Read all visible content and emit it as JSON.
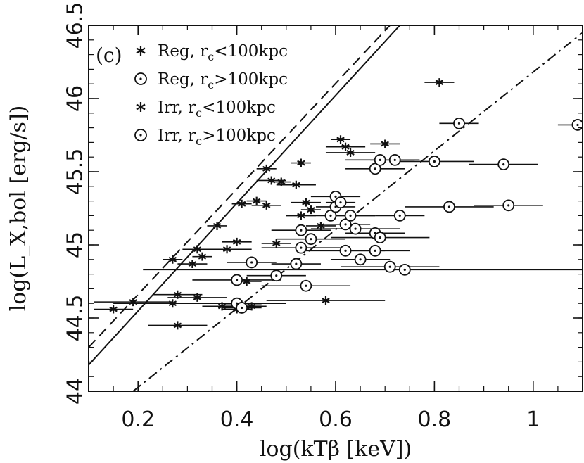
{
  "chart_data": {
    "type": "scatter",
    "panel_label": "(c)",
    "xlabel": "log(kTβ [keV])",
    "ylabel": "log(L_X,bol [erg/s])",
    "xlim": [
      0.1,
      1.1
    ],
    "ylim": [
      44.0,
      46.5
    ],
    "x_ticks": [
      0.2,
      0.4,
      0.6,
      0.8,
      1.0
    ],
    "x_tick_labels": [
      "0.2",
      "0.4",
      "0.6",
      "0.8",
      "1"
    ],
    "y_ticks": [
      44.0,
      44.5,
      45.0,
      45.5,
      46.0,
      46.5
    ],
    "y_tick_labels": [
      "44",
      "44.5",
      "45",
      "45.5",
      "46",
      "46.5"
    ],
    "legend": {
      "placement": "top-left",
      "entries": [
        {
          "marker": "star",
          "text": "Reg, r",
          "sub": "c",
          "rest": "<100kpc"
        },
        {
          "marker": "circle-dot",
          "text": "Reg, r",
          "sub": "c",
          "rest": ">100kpc"
        },
        {
          "marker": "star",
          "text": "Irr, r",
          "sub": "c",
          "rest": "<100kpc"
        },
        {
          "marker": "circle-dot",
          "text": "Irr, r",
          "sub": "c",
          "rest": ">100kpc"
        }
      ]
    },
    "lines": [
      {
        "style": "dashed",
        "points": [
          [
            0.1,
            44.3
          ],
          [
            0.71,
            46.5
          ]
        ]
      },
      {
        "style": "solid",
        "points": [
          [
            0.1,
            44.18
          ],
          [
            0.73,
            46.5
          ]
        ]
      },
      {
        "style": "dash-dot",
        "points": [
          [
            0.19,
            44.0
          ],
          [
            1.1,
            46.45
          ]
        ]
      }
    ],
    "series": [
      {
        "marker": "star",
        "points": [
          {
            "x": 0.15,
            "y": 44.56,
            "xerr": 0.04
          },
          {
            "x": 0.19,
            "y": 44.61,
            "xerr": 0.08
          },
          {
            "x": 0.27,
            "y": 44.6,
            "xerr": 0.12
          },
          {
            "x": 0.28,
            "y": 44.66,
            "xerr": 0.05
          },
          {
            "x": 0.27,
            "y": 44.9,
            "xerr": 0.02
          },
          {
            "x": 0.28,
            "y": 44.45,
            "xerr": 0.06
          },
          {
            "x": 0.32,
            "y": 44.97,
            "xerr": 0.03
          },
          {
            "x": 0.33,
            "y": 44.92,
            "xerr": 0.02
          },
          {
            "x": 0.31,
            "y": 44.87,
            "xerr": 0.03
          },
          {
            "x": 0.32,
            "y": 44.64,
            "xerr": 0.06
          },
          {
            "x": 0.36,
            "y": 45.13,
            "xerr": 0.02
          },
          {
            "x": 0.37,
            "y": 44.58,
            "xerr": 0.04
          },
          {
            "x": 0.38,
            "y": 44.97,
            "xerr": 0.05
          },
          {
            "x": 0.4,
            "y": 45.02,
            "xerr": 0.03
          },
          {
            "x": 0.41,
            "y": 45.28,
            "xerr": 0.02
          },
          {
            "x": 0.42,
            "y": 44.75,
            "xerr": 0.03
          },
          {
            "x": 0.44,
            "y": 45.3,
            "xerr": 0.02
          },
          {
            "x": 0.46,
            "y": 45.52,
            "xerr": 0.02
          },
          {
            "x": 0.46,
            "y": 45.27,
            "xerr": 0.03
          },
          {
            "x": 0.47,
            "y": 45.44,
            "xerr": 0.03
          },
          {
            "x": 0.48,
            "y": 45.01,
            "xerr": 0.03
          },
          {
            "x": 0.49,
            "y": 45.43,
            "xerr": 0.02
          },
          {
            "x": 0.52,
            "y": 45.41,
            "xerr": 0.04
          },
          {
            "x": 0.53,
            "y": 45.56,
            "xerr": 0.02
          },
          {
            "x": 0.53,
            "y": 45.2,
            "xerr": 0.03
          },
          {
            "x": 0.54,
            "y": 45.29,
            "xerr": 0.03
          },
          {
            "x": 0.55,
            "y": 45.24,
            "xerr": 0.02
          },
          {
            "x": 0.57,
            "y": 45.13,
            "xerr": 0.03
          },
          {
            "x": 0.58,
            "y": 44.62,
            "xerr": 0.12
          },
          {
            "x": 0.61,
            "y": 45.72,
            "xerr": 0.02
          },
          {
            "x": 0.62,
            "y": 45.67,
            "xerr": 0.04
          },
          {
            "x": 0.63,
            "y": 45.63,
            "xerr": 0.05
          },
          {
            "x": 0.7,
            "y": 45.69,
            "xerr": 0.03
          },
          {
            "x": 0.81,
            "y": 46.11,
            "xerr": 0.03
          },
          {
            "x": 0.41,
            "y": 44.59,
            "xerr": 0.04
          },
          {
            "x": 0.43,
            "y": 44.58,
            "xerr": 0.03
          },
          {
            "x": 0.4,
            "y": 44.56,
            "xerr": 0.03
          }
        ]
      },
      {
        "marker": "circle-dot",
        "points": [
          {
            "x": 0.4,
            "y": 44.76,
            "xerr": 0.09
          },
          {
            "x": 0.4,
            "y": 44.6,
            "xerr": 0.1
          },
          {
            "x": 0.41,
            "y": 44.57,
            "xerr": 0.04
          },
          {
            "x": 0.43,
            "y": 44.88,
            "xerr": 0.05
          },
          {
            "x": 0.48,
            "y": 44.79,
            "xerr": 0.06
          },
          {
            "x": 0.52,
            "y": 44.87,
            "xerr": 0.05
          },
          {
            "x": 0.53,
            "y": 45.1,
            "xerr": 0.06
          },
          {
            "x": 0.54,
            "y": 44.72,
            "xerr": 0.09
          },
          {
            "x": 0.53,
            "y": 44.98,
            "xerr": 0.08
          },
          {
            "x": 0.55,
            "y": 45.04,
            "xerr": 0.07
          },
          {
            "x": 0.59,
            "y": 45.2,
            "xerr": 0.09
          },
          {
            "x": 0.6,
            "y": 45.33,
            "xerr": 0.05
          },
          {
            "x": 0.6,
            "y": 45.26,
            "xerr": 0.04
          },
          {
            "x": 0.61,
            "y": 45.29,
            "xerr": 0.03
          },
          {
            "x": 0.62,
            "y": 45.14,
            "xerr": 0.05
          },
          {
            "x": 0.62,
            "y": 44.96,
            "xerr": 0.08
          },
          {
            "x": 0.63,
            "y": 45.2,
            "xerr": 0.05
          },
          {
            "x": 0.64,
            "y": 45.11,
            "xerr": 0.09
          },
          {
            "x": 0.65,
            "y": 44.9,
            "xerr": 0.06
          },
          {
            "x": 0.68,
            "y": 45.08,
            "xerr": 0.06
          },
          {
            "x": 0.68,
            "y": 44.96,
            "xerr": 0.07
          },
          {
            "x": 0.68,
            "y": 45.52,
            "xerr": 0.06
          },
          {
            "x": 0.69,
            "y": 45.58,
            "xerr": 0.07
          },
          {
            "x": 0.69,
            "y": 45.05,
            "xerr": 0.1
          },
          {
            "x": 0.71,
            "y": 44.85,
            "xerr": 0.1
          },
          {
            "x": 0.72,
            "y": 45.58,
            "xerr": 0.05
          },
          {
            "x": 0.73,
            "y": 45.2,
            "xerr": 0.05
          },
          {
            "x": 0.74,
            "y": 44.83,
            "xerr": 0.53
          },
          {
            "x": 0.8,
            "y": 45.57,
            "xerr": 0.08
          },
          {
            "x": 0.83,
            "y": 45.26,
            "xerr": 0.09
          },
          {
            "x": 0.85,
            "y": 45.83,
            "xerr": 0.04
          },
          {
            "x": 0.94,
            "y": 45.55,
            "xerr": 0.07
          },
          {
            "x": 0.95,
            "y": 45.27,
            "xerr": 0.07
          },
          {
            "x": 1.09,
            "y": 45.82,
            "xerr": 0.04
          }
        ]
      }
    ]
  }
}
